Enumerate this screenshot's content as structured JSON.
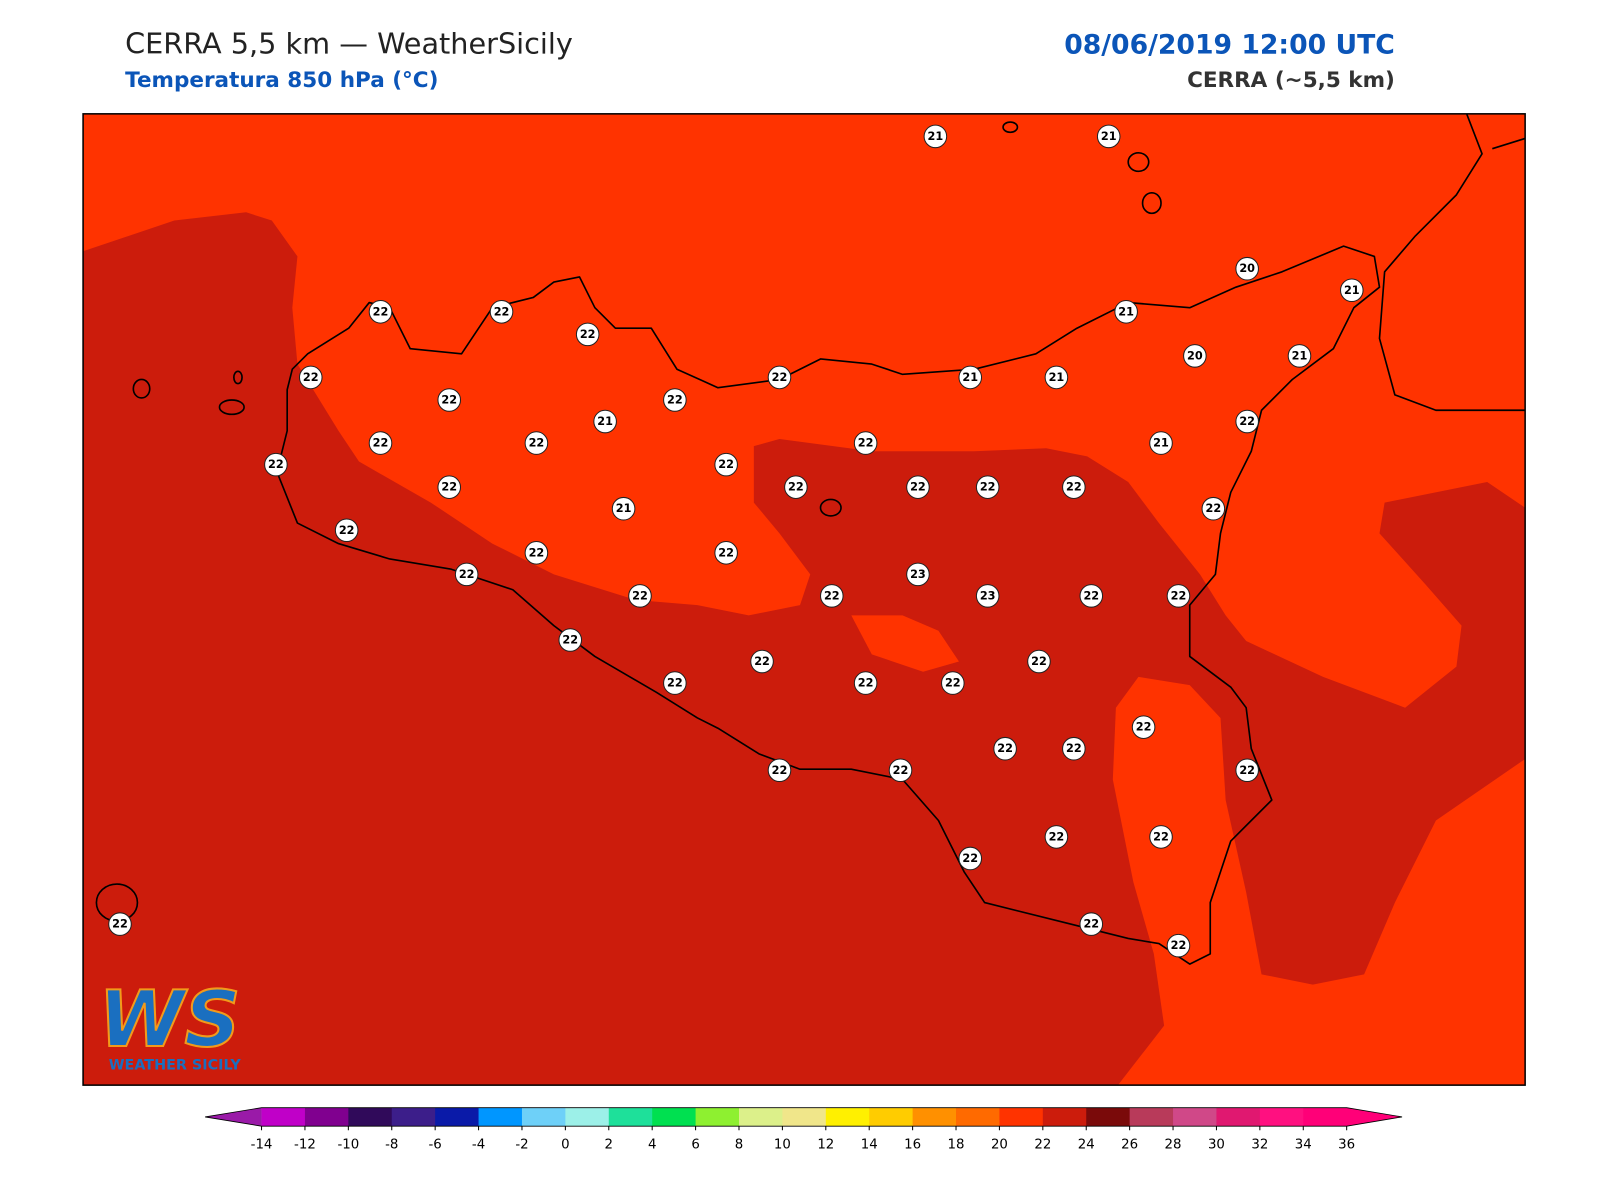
{
  "header": {
    "title": "CERRA 5,5 km — WeatherSicily",
    "subtitle": "Temperatura 850 hPa (°C)",
    "datetime": "08/06/2019 12:00 UTC",
    "model": "CERRA (~5,5 km)"
  },
  "logo": {
    "mark": "WS",
    "name": "WEATHER SICILY"
  },
  "stations": [
    21,
    21,
    20,
    21,
    22,
    22,
    22,
    21,
    20,
    21,
    22,
    22,
    21,
    21,
    22,
    22,
    21,
    22,
    22,
    22,
    22,
    21,
    22,
    22,
    22,
    22,
    22,
    22,
    22,
    21,
    22,
    22,
    22,
    22,
    22,
    23,
    22,
    22,
    23,
    22,
    22,
    22,
    22,
    22,
    22,
    22,
    22,
    22,
    22,
    22,
    22,
    22,
    22,
    22,
    22,
    22,
    22,
    22,
    22
  ],
  "colorbar": {
    "ticks": [
      -14,
      -12,
      -10,
      -8,
      -6,
      -4,
      -2,
      0,
      2,
      4,
      6,
      8,
      10,
      12,
      14,
      16,
      18,
      20,
      22,
      24,
      26,
      28,
      30,
      32,
      34,
      36
    ],
    "colors": [
      "#c000c8",
      "#80008f",
      "#300a5a",
      "#3c1e8a",
      "#0a1aa8",
      "#0096ff",
      "#6ed0f8",
      "#9cf0e8",
      "#1ee09a",
      "#00e050",
      "#8ef030",
      "#dcf08a",
      "#f0e68a",
      "#fff000",
      "#ffcc00",
      "#ff9000",
      "#ff6a00",
      "#ff3300",
      "#cc1c0c",
      "#7a0a0a",
      "#b83a5a",
      "#d04888",
      "#e01870",
      "#ff1080",
      "#ff0078"
    ],
    "under_color": "#9a1aa8",
    "over_color": "#ff0078"
  }
}
